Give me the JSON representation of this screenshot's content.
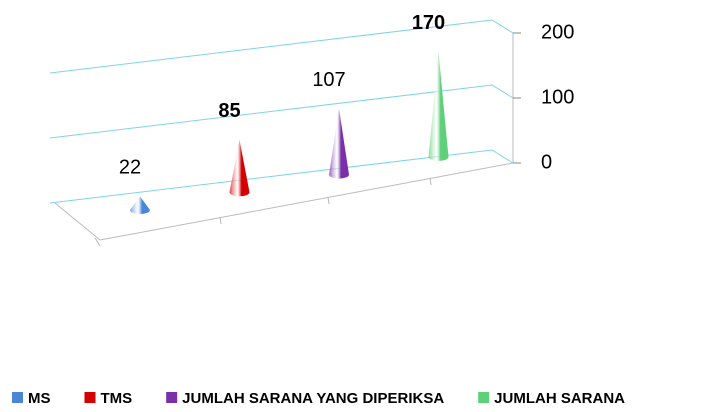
{
  "chart_data": {
    "type": "cone3d",
    "series": [
      {
        "name": "MS",
        "color": "#4a86d8",
        "values": [
          22
        ],
        "label_bold": false
      },
      {
        "name": "TMS",
        "color": "#d40000",
        "values": [
          85
        ],
        "label_bold": true
      },
      {
        "name": "JUMLAH SARANA YANG DIPERIKSA",
        "color": "#7a30a8",
        "values": [
          107
        ],
        "label_bold": false
      },
      {
        "name": "JUMLAH SARANA",
        "color": "#5fd07a",
        "values": [
          170
        ],
        "label_bold": true
      }
    ],
    "ylim": [
      0,
      200
    ],
    "yticks": [
      0,
      100,
      200
    ],
    "grid": true,
    "legend": "bottom"
  }
}
